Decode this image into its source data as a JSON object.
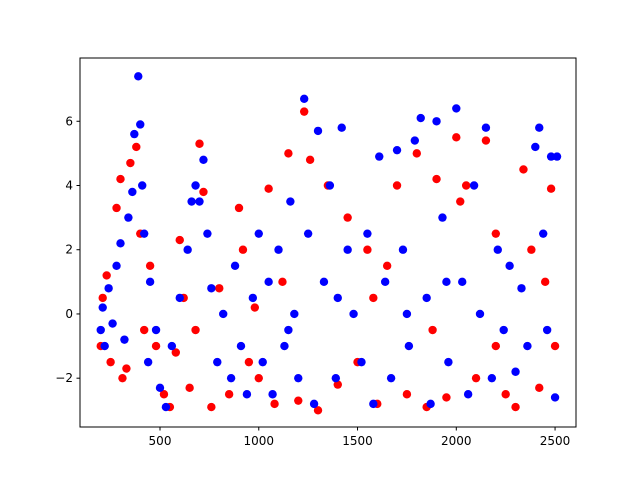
{
  "chart_data": {
    "type": "scatter",
    "xlim": [
      95,
      2606
    ],
    "ylim": [
      -3.52,
      7.97
    ],
    "xticks": [
      500,
      1000,
      1500,
      2000,
      2500
    ],
    "yticks": [
      {
        "value": -2,
        "label": "−2"
      },
      0,
      2,
      4,
      6
    ],
    "grid": false,
    "series": [
      {
        "color": "#ff0000",
        "x": [
          200,
          210,
          230,
          250,
          280,
          300,
          310,
          330,
          350,
          380,
          400,
          420,
          450,
          480,
          520,
          550,
          580,
          600,
          620,
          650,
          700,
          720,
          760,
          800,
          850,
          900,
          920,
          950,
          1000,
          1050,
          1080,
          1150,
          1200,
          1230,
          1260,
          1300,
          1350,
          1400,
          1450,
          1500,
          1550,
          1600,
          1650,
          1700,
          1750,
          1800,
          1850,
          1900,
          1950,
          2000,
          2020,
          2050,
          2100,
          2150,
          2200,
          2250,
          2300,
          2340,
          2380,
          2420,
          2450,
          2480,
          2500,
          1120,
          1580,
          1880,
          2200,
          680,
          980
        ],
        "y": [
          -1.0,
          0.5,
          1.2,
          -1.5,
          3.3,
          4.2,
          -2.0,
          -1.7,
          4.7,
          5.2,
          2.5,
          -0.5,
          1.5,
          -1.0,
          -2.5,
          -2.9,
          -1.2,
          2.3,
          0.5,
          -2.3,
          5.3,
          3.8,
          -2.9,
          0.8,
          -2.5,
          3.3,
          2.0,
          -1.5,
          -2.0,
          3.9,
          -2.8,
          5.0,
          -2.7,
          6.3,
          4.8,
          -3.0,
          4.0,
          -2.2,
          3.0,
          -1.5,
          2.0,
          -2.8,
          1.5,
          4.0,
          -2.5,
          5.0,
          -2.9,
          4.2,
          -2.6,
          5.5,
          3.5,
          4.0,
          -2.0,
          5.4,
          2.5,
          -2.5,
          -2.9,
          4.5,
          2.0,
          -2.3,
          1.0,
          3.9,
          -1.0,
          1.0,
          0.5,
          -0.5,
          -1.0,
          -0.5,
          0.2
        ]
      },
      {
        "color": "#0000ff",
        "x": [
          200,
          210,
          220,
          240,
          260,
          280,
          300,
          320,
          340,
          360,
          370,
          390,
          400,
          410,
          420,
          440,
          450,
          480,
          500,
          530,
          560,
          600,
          640,
          660,
          680,
          700,
          720,
          740,
          760,
          790,
          820,
          860,
          880,
          910,
          940,
          970,
          1000,
          1020,
          1050,
          1070,
          1100,
          1130,
          1160,
          1180,
          1200,
          1230,
          1250,
          1280,
          1300,
          1330,
          1360,
          1390,
          1420,
          1450,
          1480,
          1520,
          1550,
          1580,
          1610,
          1640,
          1670,
          1700,
          1730,
          1760,
          1790,
          1820,
          1850,
          1870,
          1900,
          1930,
          1960,
          2000,
          2030,
          2060,
          2090,
          2120,
          2150,
          2180,
          2210,
          2240,
          2270,
          2300,
          2330,
          2360,
          2400,
          2420,
          2440,
          2460,
          2480,
          2500,
          2510,
          1750,
          1950,
          1400,
          1150
        ],
        "y": [
          -0.5,
          0.2,
          -1.0,
          0.8,
          -0.3,
          1.5,
          2.2,
          -0.8,
          3.0,
          3.8,
          5.6,
          7.4,
          5.9,
          4.0,
          2.5,
          -1.5,
          1.0,
          -0.5,
          -2.3,
          -2.9,
          -1.0,
          0.5,
          2.0,
          3.5,
          4.0,
          3.5,
          4.8,
          2.5,
          0.8,
          -1.5,
          0.0,
          -2.0,
          1.5,
          -1.0,
          -2.5,
          0.5,
          2.5,
          -1.5,
          1.0,
          -2.5,
          2.0,
          -1.0,
          3.5,
          0.0,
          -2.0,
          6.7,
          2.5,
          -2.8,
          5.7,
          1.0,
          4.0,
          -2.0,
          5.8,
          2.0,
          0.0,
          -1.5,
          2.5,
          -2.8,
          4.9,
          1.0,
          -2.0,
          5.1,
          2.0,
          -1.0,
          5.4,
          6.1,
          0.5,
          -2.8,
          6.0,
          3.0,
          -1.5,
          6.4,
          1.0,
          -2.5,
          4.0,
          0.0,
          5.8,
          -2.0,
          2.0,
          -0.5,
          1.5,
          -1.8,
          0.8,
          -1.0,
          5.2,
          5.8,
          2.5,
          -0.5,
          4.9,
          -2.6,
          4.9,
          0.0,
          1.0,
          0.5,
          -0.5
        ]
      }
    ]
  }
}
